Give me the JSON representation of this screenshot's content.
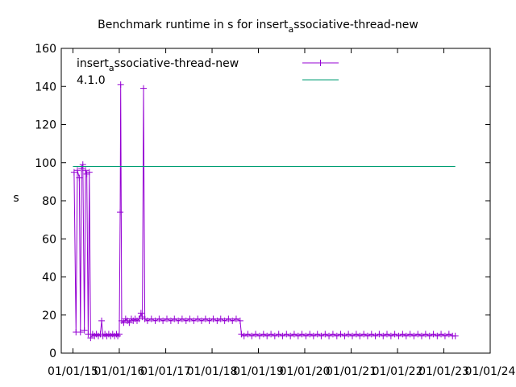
{
  "chart_data": {
    "type": "line",
    "title": "Benchmark runtime in s for insert",
    "title_subscript": "a",
    "title_suffix": "ssociative-thread-new",
    "xlabel": "",
    "ylabel": "s",
    "ylim": [
      0,
      160
    ],
    "xlim": [
      "2014-10-01",
      "2024-01-01"
    ],
    "y_ticks": [
      "0",
      "20",
      "40",
      "60",
      "80",
      "100",
      "120",
      "140",
      "160"
    ],
    "x_ticks": [
      {
        "date": "2015-01-01",
        "label": "01/01/15"
      },
      {
        "date": "2016-01-01",
        "label": "01/01/16"
      },
      {
        "date": "2017-01-01",
        "label": "01/01/17"
      },
      {
        "date": "2018-01-01",
        "label": "01/01/18"
      },
      {
        "date": "2019-01-01",
        "label": "01/01/19"
      },
      {
        "date": "2020-01-01",
        "label": "01/01/20"
      },
      {
        "date": "2021-01-01",
        "label": "01/01/21"
      },
      {
        "date": "2022-01-01",
        "label": "01/01/22"
      },
      {
        "date": "2023-01-01",
        "label": "01/01/23"
      },
      {
        "date": "2024-01-01",
        "label": "01/01/24"
      }
    ],
    "grid": false,
    "legend_position": "top-left",
    "series": [
      {
        "name": "insert",
        "name_subscript": "a",
        "name_suffix": "ssociative-thread-new",
        "color": "#9400d3",
        "marker": "plus",
        "points": [
          [
            "2015-01-10",
            95
          ],
          [
            "2015-01-25",
            11
          ],
          [
            "2015-02-05",
            96
          ],
          [
            "2015-02-20",
            92
          ],
          [
            "2015-03-01",
            11
          ],
          [
            "2015-03-10",
            97
          ],
          [
            "2015-03-20",
            99
          ],
          [
            "2015-04-01",
            12
          ],
          [
            "2015-04-10",
            96
          ],
          [
            "2015-04-20",
            94
          ],
          [
            "2015-05-01",
            10
          ],
          [
            "2015-05-10",
            95
          ],
          [
            "2015-05-20",
            8
          ],
          [
            "2015-06-05",
            10
          ],
          [
            "2015-06-20",
            9
          ],
          [
            "2015-07-05",
            10
          ],
          [
            "2015-07-20",
            9
          ],
          [
            "2015-08-05",
            10
          ],
          [
            "2015-08-15",
            17
          ],
          [
            "2015-08-25",
            9
          ],
          [
            "2015-09-10",
            10
          ],
          [
            "2015-09-25",
            9
          ],
          [
            "2015-10-10",
            10
          ],
          [
            "2015-10-25",
            9
          ],
          [
            "2015-11-10",
            10
          ],
          [
            "2015-11-25",
            9
          ],
          [
            "2015-12-10",
            10
          ],
          [
            "2015-12-20",
            9
          ],
          [
            "2016-01-01",
            10
          ],
          [
            "2016-01-08",
            74
          ],
          [
            "2016-01-12",
            141
          ],
          [
            "2016-01-20",
            17
          ],
          [
            "2016-02-05",
            16
          ],
          [
            "2016-02-20",
            18
          ],
          [
            "2016-03-05",
            17
          ],
          [
            "2016-03-20",
            16
          ],
          [
            "2016-04-05",
            18
          ],
          [
            "2016-04-20",
            17
          ],
          [
            "2016-05-05",
            18
          ],
          [
            "2016-05-20",
            17
          ],
          [
            "2016-06-05",
            18
          ],
          [
            "2016-06-20",
            21
          ],
          [
            "2016-07-01",
            19
          ],
          [
            "2016-07-10",
            139
          ],
          [
            "2016-07-20",
            18
          ],
          [
            "2016-08-10",
            17
          ],
          [
            "2016-09-10",
            18
          ],
          [
            "2016-10-10",
            17
          ],
          [
            "2016-11-10",
            18
          ],
          [
            "2016-12-10",
            17
          ],
          [
            "2017-01-10",
            18
          ],
          [
            "2017-02-10",
            17
          ],
          [
            "2017-03-10",
            18
          ],
          [
            "2017-04-10",
            17
          ],
          [
            "2017-05-10",
            18
          ],
          [
            "2017-06-10",
            17
          ],
          [
            "2017-07-10",
            18
          ],
          [
            "2017-08-10",
            17
          ],
          [
            "2017-09-10",
            18
          ],
          [
            "2017-10-10",
            17
          ],
          [
            "2017-11-10",
            18
          ],
          [
            "2017-12-10",
            17
          ],
          [
            "2018-01-10",
            18
          ],
          [
            "2018-02-10",
            17
          ],
          [
            "2018-03-10",
            18
          ],
          [
            "2018-04-10",
            17
          ],
          [
            "2018-05-10",
            18
          ],
          [
            "2018-06-10",
            17
          ],
          [
            "2018-07-10",
            18
          ],
          [
            "2018-08-10",
            17
          ],
          [
            "2018-08-20",
            10
          ],
          [
            "2018-09-10",
            9
          ],
          [
            "2018-10-10",
            10
          ],
          [
            "2018-11-10",
            9
          ],
          [
            "2018-12-10",
            10
          ],
          [
            "2019-01-10",
            9
          ],
          [
            "2019-02-10",
            10
          ],
          [
            "2019-03-10",
            9
          ],
          [
            "2019-04-10",
            10
          ],
          [
            "2019-05-10",
            9
          ],
          [
            "2019-06-10",
            10
          ],
          [
            "2019-07-10",
            9
          ],
          [
            "2019-08-10",
            10
          ],
          [
            "2019-09-10",
            9
          ],
          [
            "2019-10-10",
            10
          ],
          [
            "2019-11-10",
            9
          ],
          [
            "2019-12-10",
            10
          ],
          [
            "2020-01-10",
            9
          ],
          [
            "2020-02-10",
            10
          ],
          [
            "2020-03-10",
            9
          ],
          [
            "2020-04-10",
            10
          ],
          [
            "2020-05-10",
            9
          ],
          [
            "2020-06-10",
            10
          ],
          [
            "2020-07-10",
            9
          ],
          [
            "2020-08-10",
            10
          ],
          [
            "2020-09-10",
            9
          ],
          [
            "2020-10-10",
            10
          ],
          [
            "2020-11-10",
            9
          ],
          [
            "2020-12-10",
            10
          ],
          [
            "2021-01-10",
            9
          ],
          [
            "2021-02-10",
            10
          ],
          [
            "2021-03-10",
            9
          ],
          [
            "2021-04-10",
            10
          ],
          [
            "2021-05-10",
            9
          ],
          [
            "2021-06-10",
            10
          ],
          [
            "2021-07-10",
            9
          ],
          [
            "2021-08-10",
            10
          ],
          [
            "2021-09-10",
            9
          ],
          [
            "2021-10-10",
            10
          ],
          [
            "2021-11-10",
            9
          ],
          [
            "2021-12-10",
            10
          ],
          [
            "2022-01-10",
            9
          ],
          [
            "2022-02-10",
            10
          ],
          [
            "2022-03-10",
            9
          ],
          [
            "2022-04-10",
            10
          ],
          [
            "2022-05-10",
            9
          ],
          [
            "2022-06-10",
            10
          ],
          [
            "2022-07-10",
            9
          ],
          [
            "2022-08-10",
            10
          ],
          [
            "2022-09-10",
            9
          ],
          [
            "2022-10-10",
            10
          ],
          [
            "2022-11-10",
            9
          ],
          [
            "2022-12-10",
            10
          ],
          [
            "2023-01-10",
            9
          ],
          [
            "2023-02-10",
            10
          ],
          [
            "2023-03-10",
            9
          ],
          [
            "2023-04-01",
            9
          ]
        ]
      },
      {
        "name": "4.1.0",
        "color": "#009e73",
        "marker": "none",
        "points": [
          [
            "2015-01-01",
            98
          ],
          [
            "2023-04-01",
            98
          ]
        ]
      }
    ]
  }
}
